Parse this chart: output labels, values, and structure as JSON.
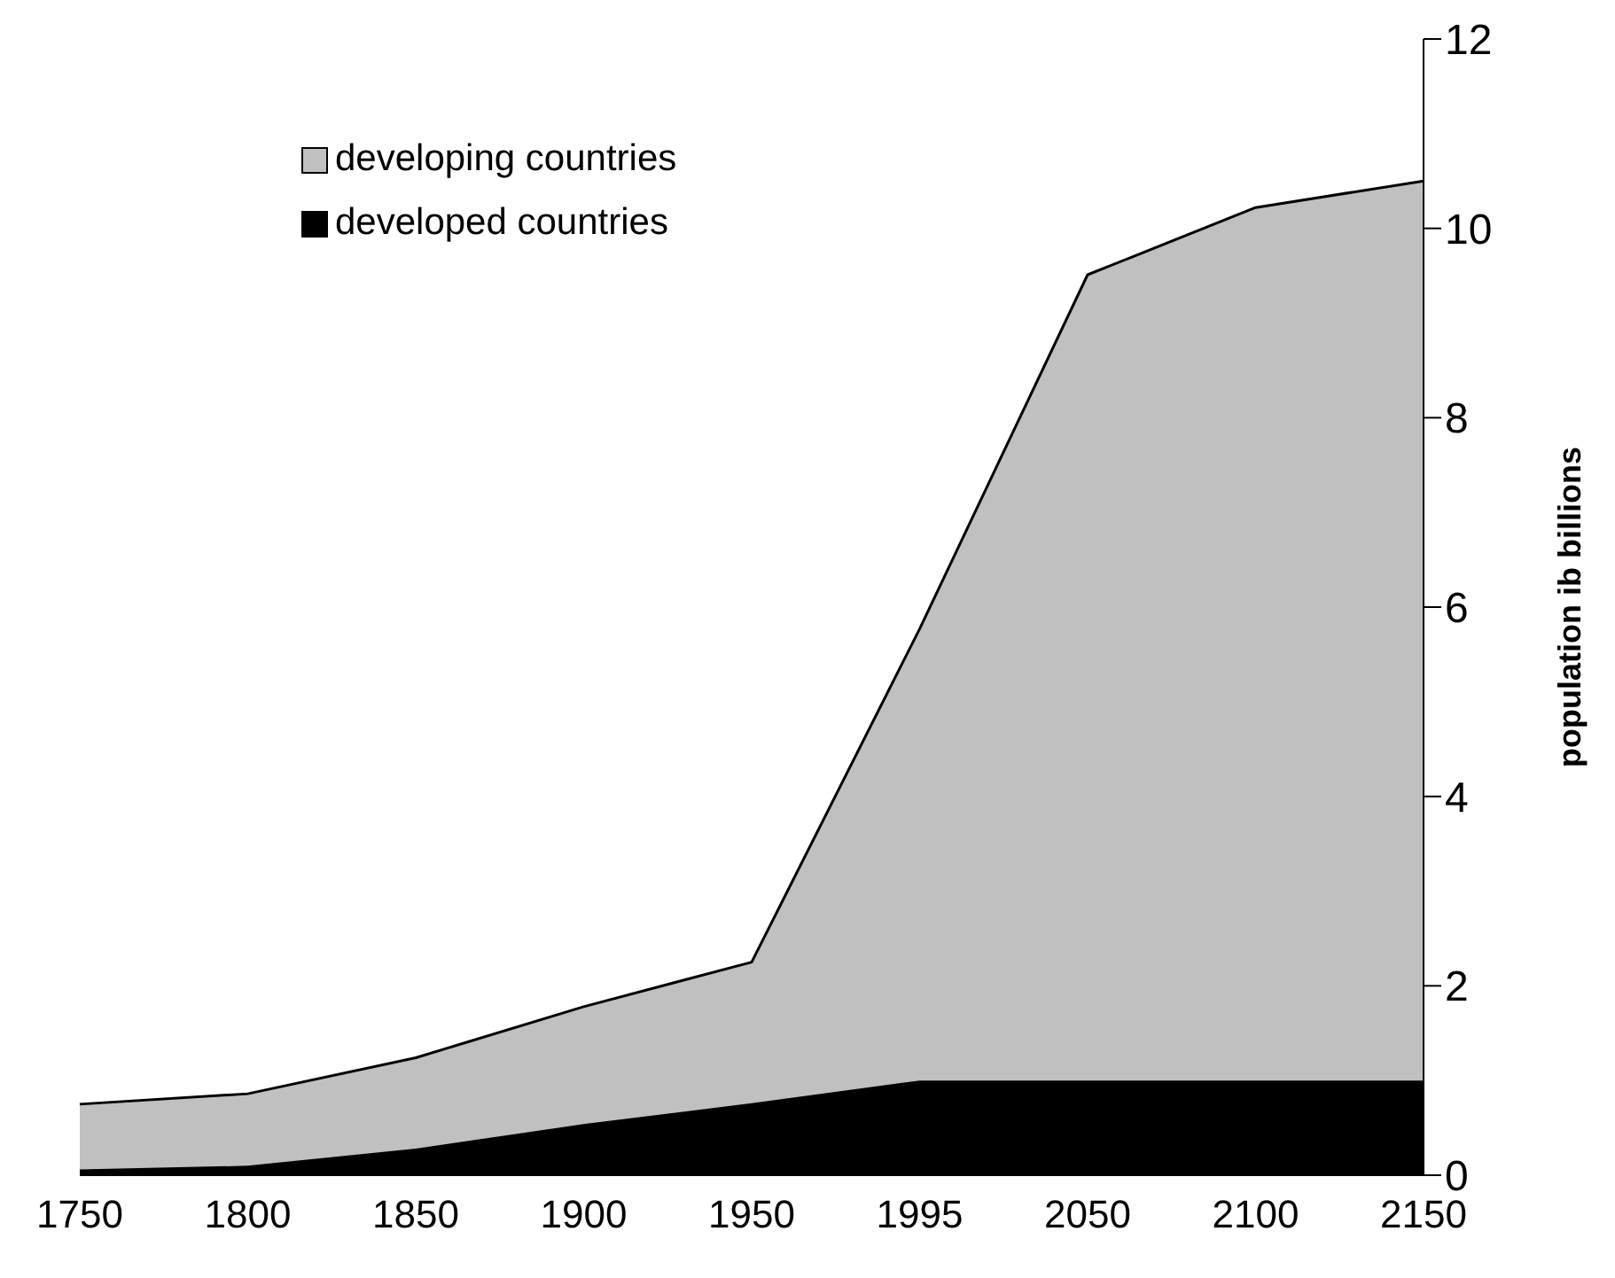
{
  "chart_data": {
    "type": "area",
    "stacked": true,
    "ylabel": "population ib billions",
    "categories": [
      "1750",
      "1800",
      "1850",
      "1900",
      "1950",
      "1995",
      "2050",
      "2100",
      "2150"
    ],
    "series": [
      {
        "name": "developed countries",
        "color": "#000000",
        "values": [
          0.06,
          0.1,
          0.28,
          0.54,
          0.76,
          1.0,
          1.0,
          1.0,
          1.0
        ]
      },
      {
        "name": "developing countries",
        "color": "#c0c0c0",
        "values": [
          0.69,
          0.76,
          0.96,
          1.24,
          1.49,
          4.77,
          8.51,
          9.22,
          9.5
        ]
      }
    ],
    "ylim": [
      0,
      12
    ],
    "yticks": [
      0,
      2,
      4,
      6,
      8,
      10,
      12
    ],
    "grid": false,
    "legend": "top left"
  }
}
